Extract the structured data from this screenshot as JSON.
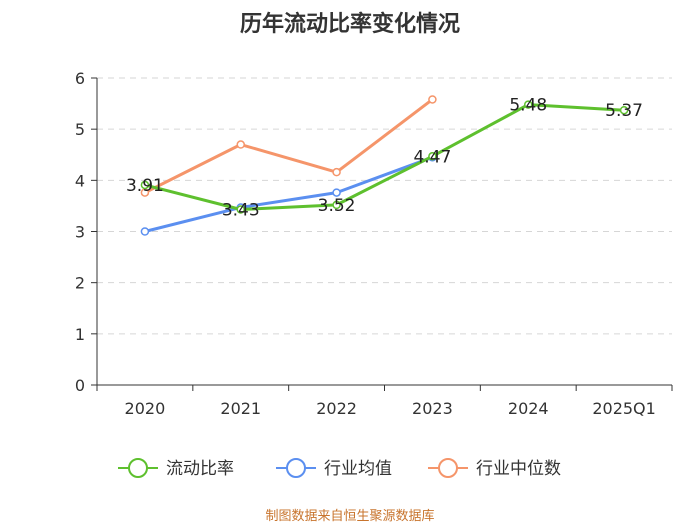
{
  "title": "历年流动比率变化情况",
  "source": "制图数据来自恒生聚源数据库",
  "chart_data": {
    "type": "line",
    "title": "历年流动比率变化情况",
    "categories": [
      "2020",
      "2021",
      "2022",
      "2023",
      "2024",
      "2025Q1"
    ],
    "yticks": [
      "0",
      "1",
      "2",
      "3",
      "4",
      "5",
      "6"
    ],
    "ylim": [
      0,
      6
    ],
    "grid": true,
    "legend_position": "bottom",
    "series": [
      {
        "name": "流动比率",
        "color": "#5ec02e",
        "values": [
          3.91,
          3.43,
          3.52,
          4.47,
          5.48,
          5.37
        ],
        "labels": [
          "3.91",
          "3.43",
          "3.52",
          "4.47",
          "5.48",
          "5.37"
        ]
      },
      {
        "name": "行业均值",
        "color": "#5b8ff0",
        "values": [
          3.0,
          3.47,
          3.76,
          4.45,
          null,
          null
        ]
      },
      {
        "name": "行业中位数",
        "color": "#f5956a",
        "values": [
          3.76,
          4.7,
          4.16,
          5.58,
          null,
          null
        ]
      }
    ]
  }
}
